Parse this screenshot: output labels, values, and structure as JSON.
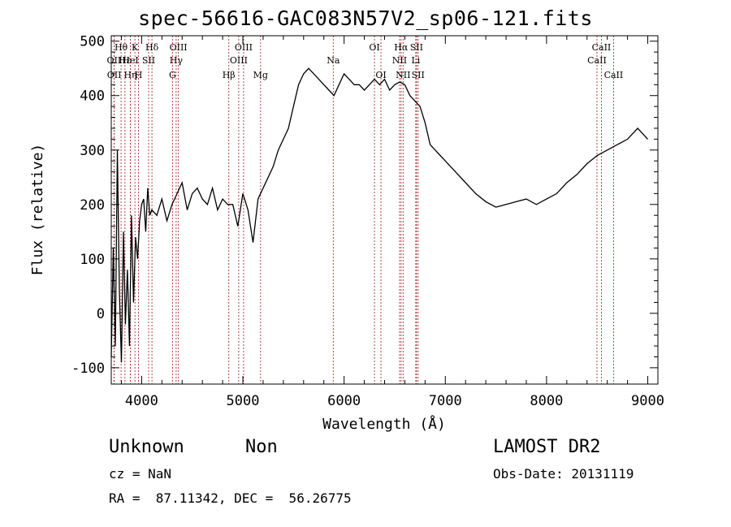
{
  "chart_data": {
    "type": "line",
    "title": "spec-56616-GAC083N57V2_sp06-121.fits",
    "xlabel": "Wavelength (Å)",
    "ylabel": "Flux (relative)",
    "xlim": [
      3700,
      9100
    ],
    "ylim": [
      -130,
      510
    ],
    "xticks": [
      4000,
      5000,
      6000,
      7000,
      8000,
      9000
    ],
    "yticks": [
      -100,
      0,
      100,
      200,
      300,
      400,
      500
    ],
    "grid": false,
    "series": [
      {
        "x": [
          3700,
          3720,
          3740,
          3760,
          3780,
          3800,
          3820,
          3840,
          3860,
          3880,
          3900,
          3920,
          3940,
          3960,
          3980,
          4000,
          4020,
          4040,
          4060,
          4080,
          4100,
          4150,
          4200,
          4250,
          4300,
          4350,
          4400,
          4450,
          4500,
          4550,
          4600,
          4650,
          4700,
          4750,
          4800,
          4850,
          4900,
          4950,
          5000,
          5050,
          5100,
          5150,
          5200,
          5250,
          5300,
          5350,
          5400,
          5450,
          5500,
          5550,
          5600,
          5650,
          5700,
          5750,
          5800,
          5850,
          5900,
          5950,
          6000,
          6050,
          6100,
          6150,
          6200,
          6250,
          6300,
          6350,
          6400,
          6450,
          6500,
          6550,
          6600,
          6650,
          6700,
          6750,
          6800,
          6850,
          6900,
          6950,
          7000,
          7050,
          7100,
          7200,
          7300,
          7400,
          7500,
          7600,
          7700,
          7800,
          7900,
          8000,
          8100,
          8200,
          8300,
          8400,
          8500,
          8600,
          8700,
          8800,
          8900,
          8950,
          9000
        ],
        "values": [
          -80,
          120,
          -60,
          300,
          40,
          -90,
          150,
          -20,
          80,
          -60,
          180,
          20,
          140,
          100,
          170,
          200,
          210,
          150,
          230,
          180,
          190,
          180,
          210,
          170,
          200,
          220,
          240,
          190,
          220,
          230,
          210,
          200,
          230,
          190,
          210,
          200,
          200,
          160,
          220,
          190,
          130,
          210,
          230,
          250,
          270,
          300,
          320,
          340,
          380,
          420,
          440,
          450,
          440,
          430,
          420,
          410,
          400,
          420,
          440,
          430,
          420,
          420,
          410,
          420,
          430,
          420,
          430,
          410,
          420,
          425,
          420,
          400,
          390,
          380,
          350,
          310,
          300,
          290,
          280,
          270,
          260,
          240,
          220,
          205,
          195,
          200,
          205,
          210,
          200,
          210,
          220,
          240,
          255,
          275,
          290,
          300,
          310,
          320,
          340,
          330,
          320
        ]
      }
    ],
    "line_markers": [
      {
        "label": "Hθ",
        "x": 3797,
        "row": 0
      },
      {
        "label": "OII",
        "x": 3727,
        "row": 1
      },
      {
        "label": "OII",
        "x": 3729,
        "row": 2
      },
      {
        "label": "Hε",
        "x": 3835,
        "row": 1
      },
      {
        "label": "Hη",
        "x": 3889,
        "row": 2
      },
      {
        "label": "K",
        "x": 3934,
        "row": 0
      },
      {
        "label": "HeI",
        "x": 3889,
        "row": 1
      },
      {
        "label": "SII",
        "x": 4069,
        "row": 1
      },
      {
        "label": "H",
        "x": 3969,
        "row": 2
      },
      {
        "label": "Hδ",
        "x": 4102,
        "row": 0
      },
      {
        "label": "OIII",
        "x": 4363,
        "row": 0
      },
      {
        "label": "Hγ",
        "x": 4341,
        "row": 1
      },
      {
        "label": "G",
        "x": 4305,
        "row": 2
      },
      {
        "label": "OIII",
        "x": 5007,
        "row": 0
      },
      {
        "label": "OIII",
        "x": 4959,
        "row": 1
      },
      {
        "label": "Hβ",
        "x": 4861,
        "row": 2
      },
      {
        "label": "Mg",
        "x": 5175,
        "row": 2
      },
      {
        "label": "Na",
        "x": 5893,
        "row": 1
      },
      {
        "label": "OI",
        "x": 6300,
        "row": 0
      },
      {
        "label": "OI",
        "x": 6364,
        "row": 2
      },
      {
        "label": "Hα",
        "x": 6563,
        "row": 0
      },
      {
        "label": "SII",
        "x": 6716,
        "row": 0
      },
      {
        "label": "NII",
        "x": 6548,
        "row": 1
      },
      {
        "label": "Li",
        "x": 6708,
        "row": 1
      },
      {
        "label": "NII",
        "x": 6583,
        "row": 2
      },
      {
        "label": "SII",
        "x": 6731,
        "row": 2
      },
      {
        "label": "CaII",
        "x": 8542,
        "row": 0
      },
      {
        "label": "CaII",
        "x": 8498,
        "row": 1
      },
      {
        "label": "CaII",
        "x": 8662,
        "row": 2
      }
    ]
  },
  "info": {
    "class_name": "Unknown",
    "subclass": "Non",
    "survey": "LAMOST DR2",
    "redshift": "cz = NaN",
    "obs_date": "Obs-Date: 20131119",
    "coords": "RA =  87.11342, DEC =  56.26775"
  }
}
